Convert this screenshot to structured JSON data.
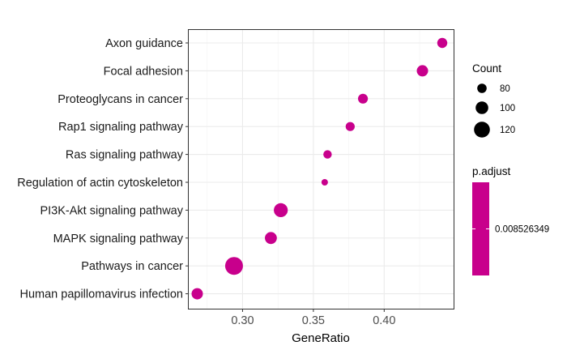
{
  "chart_data": {
    "type": "scatter",
    "title": "",
    "xlabel": "GeneRatio",
    "ylabel": "",
    "xlim": [
      0.262,
      0.449
    ],
    "xticks": [
      0.3,
      0.35,
      0.4
    ],
    "xtick_labels": [
      "0.30",
      "0.35",
      "0.40"
    ],
    "grid": true,
    "categories": [
      "Axon guidance",
      "Focal adhesion",
      "Proteoglycans in cancer",
      "Rap1 signaling pathway",
      "Ras signaling pathway",
      "Regulation of actin cytoskeleton",
      "PI3K-Akt signaling pathway",
      "MAPK signaling pathway",
      "Pathways in cancer",
      "Human papillomavirus infection"
    ],
    "points": [
      {
        "term": "Axon guidance",
        "gene_ratio": 0.441,
        "count": 84,
        "color": "#C8008C"
      },
      {
        "term": "Focal adhesion",
        "gene_ratio": 0.427,
        "count": 92,
        "color": "#C8008C"
      },
      {
        "term": "Proteoglycans in cancer",
        "gene_ratio": 0.385,
        "count": 83,
        "color": "#C8008C"
      },
      {
        "term": "Rap1 signaling pathway",
        "gene_ratio": 0.376,
        "count": 78,
        "color": "#C8008C"
      },
      {
        "term": "Ras signaling pathway",
        "gene_ratio": 0.36,
        "count": 74,
        "color": "#C8008C"
      },
      {
        "term": "Regulation of actin cytoskeleton",
        "gene_ratio": 0.358,
        "count": 62,
        "color": "#C8008C"
      },
      {
        "term": "PI3K-Akt signaling pathway",
        "gene_ratio": 0.327,
        "count": 108,
        "color": "#C8008C"
      },
      {
        "term": "MAPK signaling pathway",
        "gene_ratio": 0.32,
        "count": 96,
        "color": "#C8008C"
      },
      {
        "term": "Pathways in cancer",
        "gene_ratio": 0.294,
        "count": 132,
        "color": "#C8008C"
      },
      {
        "term": "Human papillomavirus infection",
        "gene_ratio": 0.268,
        "count": 92,
        "color": "#C8008C"
      }
    ],
    "legend": {
      "placement": "right",
      "size_title": "Count",
      "size_breaks": [
        80,
        100,
        120
      ],
      "size_labels": [
        "80",
        "100",
        "120"
      ],
      "color_title": "p.adjust",
      "color_labels": [
        "0.008526349"
      ],
      "color": "#C8008C"
    }
  }
}
